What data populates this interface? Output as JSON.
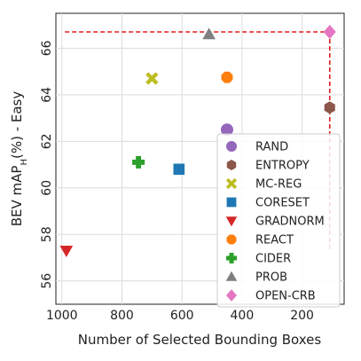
{
  "chart_data": {
    "type": "scatter",
    "title": "",
    "xlabel": "Number of Selected Bounding Boxes",
    "ylabel": "BEV mAP_H(%) - Easy",
    "x_reversed": true,
    "xlim": [
      1020,
      60
    ],
    "ylim": [
      55,
      67.5
    ],
    "xticks": [
      1000,
      800,
      600,
      400,
      200
    ],
    "yticks": [
      56,
      58,
      60,
      62,
      64,
      66
    ],
    "grid": true,
    "legend_placement": "bottom-right",
    "series": [
      {
        "name": "RAND",
        "marker": "circle",
        "color": "#9467bd",
        "points": [
          {
            "x": 450,
            "y": 62.5
          }
        ]
      },
      {
        "name": "ENTROPY",
        "marker": "hexagon",
        "color": "#8c564b",
        "points": [
          {
            "x": 108,
            "y": 63.45
          }
        ]
      },
      {
        "name": "MC-REG",
        "marker": "x",
        "color": "#bcbd22",
        "points": [
          {
            "x": 700,
            "y": 64.7
          }
        ]
      },
      {
        "name": "CORESET",
        "marker": "square",
        "color": "#1f77b4",
        "points": [
          {
            "x": 610,
            "y": 60.8
          }
        ]
      },
      {
        "name": "GRADNORM",
        "marker": "triangle-down",
        "color": "#d62728",
        "points": [
          {
            "x": 985,
            "y": 57.3
          }
        ]
      },
      {
        "name": "REACT",
        "marker": "octagon",
        "color": "#ff7f0e",
        "points": [
          {
            "x": 450,
            "y": 64.75
          }
        ]
      },
      {
        "name": "CIDER",
        "marker": "plus",
        "color": "#2ca02c",
        "points": [
          {
            "x": 745,
            "y": 61.1
          }
        ]
      },
      {
        "name": "PROB",
        "marker": "triangle-up",
        "color": "#7f7f7f",
        "points": [
          {
            "x": 510,
            "y": 66.6
          }
        ]
      },
      {
        "name": "OPEN-CRB",
        "marker": "diamond",
        "color": "#e377c2",
        "points": [
          {
            "x": 108,
            "y": 66.7
          }
        ]
      }
    ],
    "reference_lines": [
      {
        "orientation": "horizontal",
        "y": 66.7,
        "x_from": 990,
        "x_to": 108,
        "color": "#e31a1c",
        "style": "dashed"
      },
      {
        "orientation": "vertical",
        "x": 108,
        "y_from": 66.7,
        "y_to": 57.3,
        "color": "#e31a1c",
        "style": "dashed"
      }
    ]
  }
}
